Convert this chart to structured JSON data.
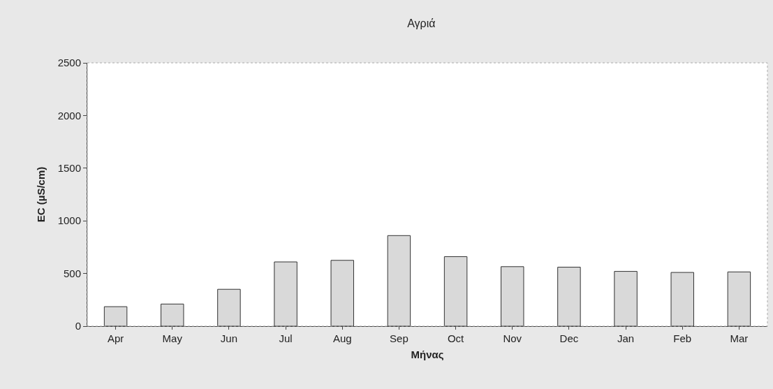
{
  "chart_data": {
    "type": "bar",
    "title": "Αγριά",
    "xlabel": "Μήνας",
    "ylabel": "EC (µS/cm)",
    "categories": [
      "Apr",
      "May",
      "Jun",
      "Jul",
      "Aug",
      "Sep",
      "Oct",
      "Nov",
      "Dec",
      "Jan",
      "Feb",
      "Mar"
    ],
    "values": [
      185,
      210,
      350,
      610,
      625,
      860,
      660,
      565,
      560,
      520,
      510,
      515
    ],
    "color": "#d9d9d9",
    "ylim": [
      0,
      2500
    ],
    "yticks": [
      0,
      500,
      1000,
      1500,
      2000,
      2500
    ],
    "grid": false
  }
}
